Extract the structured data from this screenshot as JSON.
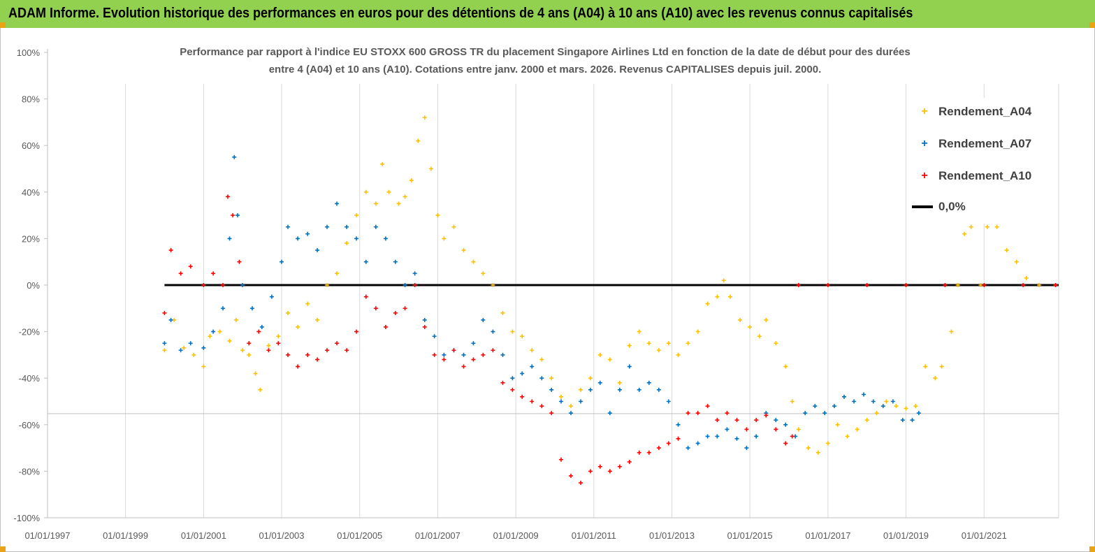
{
  "header": {
    "title": "ADAM Informe. Evolution historique des performances en euros pour des détentions de 4 ans (A04) à 10 ans (A10) avec les revenus connus capitalisés"
  },
  "colors": {
    "header_bg": "#92d050",
    "A04": "#ffc000",
    "A07": "#0070c0",
    "A10": "#ff0000",
    "zero_line": "#000000"
  },
  "chart_data": {
    "type": "scatter",
    "title_lines": [
      "Performance par rapport à l'indice EU STOXX 600 GROSS TR  du placement Singapore Airlines Ltd en fonction de la date de début pour des durées",
      "entre 4 (A04) et 10 ans (A10). Cotations entre janv. 2000 et mars. 2026. Revenus CAPITALISES depuis juil. 2000."
    ],
    "xlabel": "",
    "ylabel": "",
    "x_tick_labels": [
      "01/01/1997",
      "01/01/1999",
      "01/01/2001",
      "01/01/2003",
      "01/01/2005",
      "01/01/2007",
      "01/01/2009",
      "01/01/2011",
      "01/01/2013",
      "01/01/2015",
      "01/01/2017",
      "01/01/2019",
      "01/01/2021"
    ],
    "x_range": [
      "1997-01-01",
      "2022-11-30"
    ],
    "y_tick_labels": [
      "100%",
      "80%",
      "60%",
      "40%",
      "20%",
      "0%",
      "-20%",
      "-40%",
      "-60%",
      "-80%",
      "-100%"
    ],
    "ylim": [
      -100,
      100
    ],
    "grid": "vertical",
    "legend_position": "top-right",
    "series": [
      {
        "name": "Rendement_A04",
        "marker": "+",
        "points": [
          [
            "2000-01-01",
            -28
          ],
          [
            "2000-04-01",
            -15
          ],
          [
            "2000-07-01",
            -27
          ],
          [
            "2000-10-01",
            -30
          ],
          [
            "2001-01-01",
            -35
          ],
          [
            "2001-03-01",
            -22
          ],
          [
            "2001-06-01",
            -20
          ],
          [
            "2001-09-01",
            -24
          ],
          [
            "2001-11-01",
            -15
          ],
          [
            "2002-01-01",
            -28
          ],
          [
            "2002-03-01",
            -30
          ],
          [
            "2002-05-01",
            -38
          ],
          [
            "2002-06-15",
            -45
          ],
          [
            "2002-09-01",
            -26
          ],
          [
            "2002-12-01",
            -22
          ],
          [
            "2003-03-01",
            -12
          ],
          [
            "2003-06-01",
            -18
          ],
          [
            "2003-09-01",
            -8
          ],
          [
            "2003-12-01",
            -15
          ],
          [
            "2004-03-01",
            0
          ],
          [
            "2004-06-01",
            5
          ],
          [
            "2004-09-01",
            18
          ],
          [
            "2004-12-01",
            30
          ],
          [
            "2005-03-01",
            40
          ],
          [
            "2005-06-01",
            35
          ],
          [
            "2005-08-01",
            52
          ],
          [
            "2005-10-01",
            40
          ],
          [
            "2006-01-01",
            35
          ],
          [
            "2006-03-01",
            38
          ],
          [
            "2006-05-01",
            45
          ],
          [
            "2006-07-01",
            62
          ],
          [
            "2006-09-01",
            72
          ],
          [
            "2006-11-01",
            50
          ],
          [
            "2007-01-01",
            30
          ],
          [
            "2007-03-01",
            20
          ],
          [
            "2007-06-01",
            25
          ],
          [
            "2007-09-01",
            15
          ],
          [
            "2007-12-01",
            10
          ],
          [
            "2008-03-01",
            5
          ],
          [
            "2008-06-01",
            0
          ],
          [
            "2008-09-01",
            -12
          ],
          [
            "2008-12-01",
            -20
          ],
          [
            "2009-03-01",
            -22
          ],
          [
            "2009-06-01",
            -28
          ],
          [
            "2009-09-01",
            -32
          ],
          [
            "2009-12-01",
            -40
          ],
          [
            "2010-03-01",
            -48
          ],
          [
            "2010-06-01",
            -52
          ],
          [
            "2010-09-01",
            -45
          ],
          [
            "2010-12-01",
            -40
          ],
          [
            "2011-03-01",
            -30
          ],
          [
            "2011-06-01",
            -32
          ],
          [
            "2011-09-01",
            -42
          ],
          [
            "2011-12-01",
            -26
          ],
          [
            "2012-03-01",
            -20
          ],
          [
            "2012-06-01",
            -25
          ],
          [
            "2012-09-01",
            -28
          ],
          [
            "2012-12-01",
            -25
          ],
          [
            "2013-03-01",
            -30
          ],
          [
            "2013-06-01",
            -25
          ],
          [
            "2013-09-01",
            -20
          ],
          [
            "2013-12-01",
            -8
          ],
          [
            "2014-03-01",
            -5
          ],
          [
            "2014-05-01",
            2
          ],
          [
            "2014-07-01",
            -5
          ],
          [
            "2014-10-01",
            -15
          ],
          [
            "2015-01-01",
            -18
          ],
          [
            "2015-04-01",
            -22
          ],
          [
            "2015-06-01",
            -15
          ],
          [
            "2015-09-01",
            -25
          ],
          [
            "2015-12-01",
            -35
          ],
          [
            "2016-02-01",
            -50
          ],
          [
            "2016-04-01",
            -62
          ],
          [
            "2016-07-01",
            -70
          ],
          [
            "2016-10-01",
            -72
          ],
          [
            "2017-01-01",
            -68
          ],
          [
            "2017-04-01",
            -60
          ],
          [
            "2017-07-01",
            -65
          ],
          [
            "2017-10-01",
            -62
          ],
          [
            "2018-01-01",
            -58
          ],
          [
            "2018-04-01",
            -55
          ],
          [
            "2018-07-01",
            -50
          ],
          [
            "2018-10-01",
            -52
          ],
          [
            "2019-01-01",
            -53
          ],
          [
            "2019-04-01",
            -52
          ],
          [
            "2019-07-01",
            -35
          ],
          [
            "2019-10-01",
            -40
          ],
          [
            "2019-12-01",
            -35
          ],
          [
            "2020-03-01",
            -20
          ],
          [
            "2020-05-01",
            0
          ],
          [
            "2020-07-01",
            22
          ],
          [
            "2020-09-01",
            25
          ],
          [
            "2020-12-01",
            0
          ],
          [
            "2021-02-01",
            25
          ],
          [
            "2021-05-01",
            25
          ],
          [
            "2021-08-01",
            15
          ],
          [
            "2021-11-01",
            10
          ],
          [
            "2022-02-01",
            3
          ],
          [
            "2022-06-01",
            0
          ],
          [
            "2022-11-01",
            0
          ]
        ]
      },
      {
        "name": "Rendement_A07",
        "marker": "+",
        "points": [
          [
            "2000-01-01",
            -25
          ],
          [
            "2000-03-01",
            -15
          ],
          [
            "2000-06-01",
            -28
          ],
          [
            "2000-09-01",
            -25
          ],
          [
            "2001-01-01",
            -27
          ],
          [
            "2001-04-01",
            -20
          ],
          [
            "2001-07-01",
            -10
          ],
          [
            "2001-09-01",
            20
          ],
          [
            "2001-10-15",
            55
          ],
          [
            "2001-11-15",
            30
          ],
          [
            "2002-01-01",
            0
          ],
          [
            "2002-04-01",
            -10
          ],
          [
            "2002-07-01",
            -18
          ],
          [
            "2002-10-01",
            -5
          ],
          [
            "2003-01-01",
            10
          ],
          [
            "2003-03-01",
            25
          ],
          [
            "2003-06-01",
            20
          ],
          [
            "2003-09-01",
            22
          ],
          [
            "2003-12-01",
            15
          ],
          [
            "2004-03-01",
            25
          ],
          [
            "2004-06-01",
            35
          ],
          [
            "2004-09-01",
            25
          ],
          [
            "2004-12-01",
            20
          ],
          [
            "2005-03-01",
            10
          ],
          [
            "2005-06-01",
            25
          ],
          [
            "2005-09-01",
            20
          ],
          [
            "2005-12-01",
            10
          ],
          [
            "2006-03-01",
            0
          ],
          [
            "2006-06-01",
            5
          ],
          [
            "2006-09-01",
            -15
          ],
          [
            "2006-12-01",
            -22
          ],
          [
            "2007-03-01",
            -30
          ],
          [
            "2007-06-01",
            -28
          ],
          [
            "2007-09-01",
            -30
          ],
          [
            "2007-12-01",
            -25
          ],
          [
            "2008-03-01",
            -15
          ],
          [
            "2008-06-01",
            -20
          ],
          [
            "2008-09-01",
            -30
          ],
          [
            "2008-12-01",
            -40
          ],
          [
            "2009-03-01",
            -38
          ],
          [
            "2009-06-01",
            -35
          ],
          [
            "2009-09-01",
            -40
          ],
          [
            "2009-12-01",
            -45
          ],
          [
            "2010-03-01",
            -50
          ],
          [
            "2010-06-01",
            -55
          ],
          [
            "2010-09-01",
            -50
          ],
          [
            "2010-12-01",
            -45
          ],
          [
            "2011-03-01",
            -42
          ],
          [
            "2011-06-01",
            -55
          ],
          [
            "2011-09-01",
            -45
          ],
          [
            "2011-12-01",
            -35
          ],
          [
            "2012-03-01",
            -45
          ],
          [
            "2012-06-01",
            -42
          ],
          [
            "2012-09-01",
            -45
          ],
          [
            "2012-12-01",
            -50
          ],
          [
            "2013-03-01",
            -60
          ],
          [
            "2013-06-01",
            -70
          ],
          [
            "2013-09-01",
            -68
          ],
          [
            "2013-12-01",
            -65
          ],
          [
            "2014-03-01",
            -65
          ],
          [
            "2014-06-01",
            -62
          ],
          [
            "2014-09-01",
            -66
          ],
          [
            "2014-12-01",
            -70
          ],
          [
            "2015-03-01",
            -65
          ],
          [
            "2015-06-01",
            -55
          ],
          [
            "2015-09-01",
            -58
          ],
          [
            "2015-12-01",
            -60
          ],
          [
            "2016-03-01",
            -65
          ],
          [
            "2016-06-01",
            -55
          ],
          [
            "2016-09-01",
            -52
          ],
          [
            "2016-12-01",
            -55
          ],
          [
            "2017-03-01",
            -52
          ],
          [
            "2017-06-01",
            -48
          ],
          [
            "2017-09-01",
            -50
          ],
          [
            "2017-12-01",
            -47
          ],
          [
            "2018-03-01",
            -50
          ],
          [
            "2018-06-01",
            -52
          ],
          [
            "2018-09-01",
            -50
          ],
          [
            "2018-12-01",
            -58
          ],
          [
            "2019-03-01",
            -58
          ],
          [
            "2019-05-01",
            -55
          ]
        ]
      },
      {
        "name": "Rendement_A10",
        "marker": "+",
        "points": [
          [
            "2000-01-01",
            -12
          ],
          [
            "2000-03-01",
            15
          ],
          [
            "2000-06-01",
            5
          ],
          [
            "2000-09-01",
            8
          ],
          [
            "2001-01-01",
            0
          ],
          [
            "2001-04-01",
            5
          ],
          [
            "2001-07-01",
            0
          ],
          [
            "2001-08-15",
            38
          ],
          [
            "2001-10-01",
            30
          ],
          [
            "2001-12-01",
            10
          ],
          [
            "2002-03-01",
            -25
          ],
          [
            "2002-06-01",
            -20
          ],
          [
            "2002-09-01",
            -28
          ],
          [
            "2002-12-01",
            -25
          ],
          [
            "2003-03-01",
            -30
          ],
          [
            "2003-06-01",
            -35
          ],
          [
            "2003-09-01",
            -30
          ],
          [
            "2003-12-01",
            -32
          ],
          [
            "2004-03-01",
            -28
          ],
          [
            "2004-06-01",
            -25
          ],
          [
            "2004-09-01",
            -28
          ],
          [
            "2004-12-01",
            -20
          ],
          [
            "2005-03-01",
            -5
          ],
          [
            "2005-06-01",
            -10
          ],
          [
            "2005-09-01",
            -18
          ],
          [
            "2005-12-01",
            -12
          ],
          [
            "2006-03-01",
            -10
          ],
          [
            "2006-06-01",
            0
          ],
          [
            "2006-09-01",
            -18
          ],
          [
            "2006-12-01",
            -30
          ],
          [
            "2007-03-01",
            -32
          ],
          [
            "2007-06-01",
            -28
          ],
          [
            "2007-09-01",
            -35
          ],
          [
            "2007-12-01",
            -32
          ],
          [
            "2008-03-01",
            -30
          ],
          [
            "2008-06-01",
            -28
          ],
          [
            "2008-09-01",
            -42
          ],
          [
            "2008-12-01",
            -45
          ],
          [
            "2009-03-01",
            -48
          ],
          [
            "2009-06-01",
            -50
          ],
          [
            "2009-09-01",
            -52
          ],
          [
            "2009-12-01",
            -55
          ],
          [
            "2010-03-01",
            -75
          ],
          [
            "2010-06-01",
            -82
          ],
          [
            "2010-09-01",
            -85
          ],
          [
            "2010-12-01",
            -80
          ],
          [
            "2011-03-01",
            -78
          ],
          [
            "2011-06-01",
            -80
          ],
          [
            "2011-09-01",
            -78
          ],
          [
            "2011-12-01",
            -76
          ],
          [
            "2012-03-01",
            -72
          ],
          [
            "2012-06-01",
            -72
          ],
          [
            "2012-09-01",
            -70
          ],
          [
            "2012-12-01",
            -68
          ],
          [
            "2013-03-01",
            -66
          ],
          [
            "2013-06-01",
            -55
          ],
          [
            "2013-09-01",
            -55
          ],
          [
            "2013-12-01",
            -52
          ],
          [
            "2014-03-01",
            -58
          ],
          [
            "2014-06-01",
            -55
          ],
          [
            "2014-09-01",
            -58
          ],
          [
            "2014-12-01",
            -62
          ],
          [
            "2015-03-01",
            -58
          ],
          [
            "2015-06-01",
            -56
          ],
          [
            "2015-09-01",
            -62
          ],
          [
            "2015-12-01",
            -68
          ],
          [
            "2016-02-01",
            -65
          ],
          [
            "2016-04-01",
            0
          ],
          [
            "2017-01-01",
            0
          ],
          [
            "2018-01-01",
            0
          ],
          [
            "2019-01-01",
            0
          ],
          [
            "2020-01-01",
            0
          ],
          [
            "2021-01-01",
            0
          ],
          [
            "2022-01-01",
            0
          ],
          [
            "2022-11-01",
            0
          ]
        ]
      }
    ],
    "reference_line": {
      "name": "0,0%",
      "y": 0,
      "x_start": "2000-01-01",
      "x_end": "2022-11-30"
    }
  }
}
